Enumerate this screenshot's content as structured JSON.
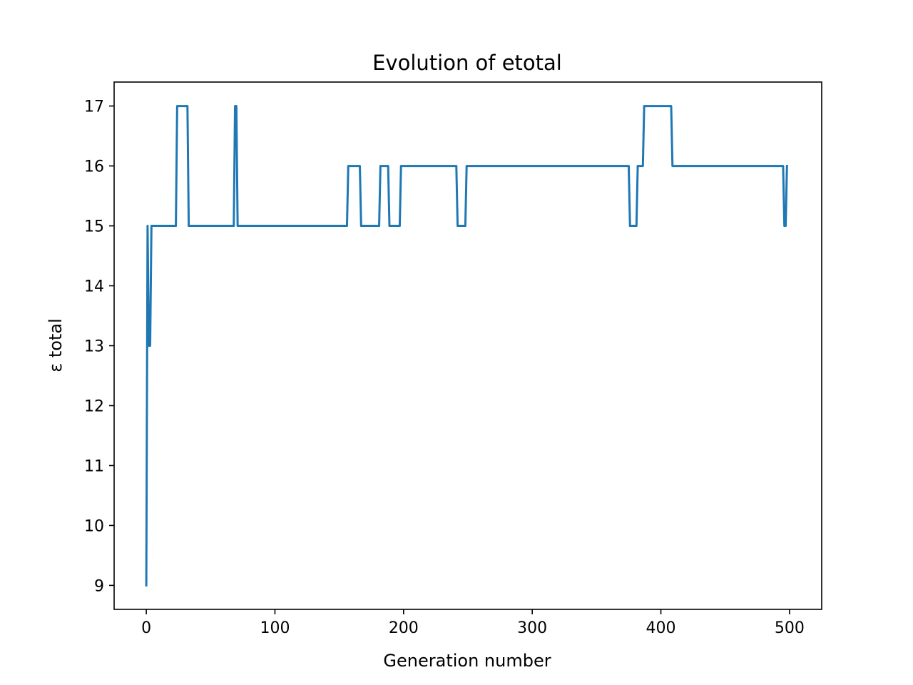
{
  "chart_data": {
    "type": "line",
    "title": "Evolution of etotal",
    "xlabel": "Generation number",
    "ylabel": "ε total",
    "xlim": [
      -25,
      525
    ],
    "ylim": [
      8.6,
      17.4
    ],
    "xticks": [
      0,
      100,
      200,
      300,
      400,
      500
    ],
    "yticks": [
      9,
      10,
      11,
      12,
      13,
      14,
      15,
      16,
      17
    ],
    "xtick_labels": [
      "0",
      "100",
      "200",
      "300",
      "400",
      "500"
    ],
    "ytick_labels": [
      "9",
      "10",
      "11",
      "12",
      "13",
      "14",
      "15",
      "16",
      "17"
    ],
    "grid": false,
    "series": [
      {
        "color": "#1f77b4",
        "points": [
          [
            0,
            9
          ],
          [
            1,
            15
          ],
          [
            2,
            13
          ],
          [
            3,
            13
          ],
          [
            4,
            15
          ],
          [
            23,
            15
          ],
          [
            24,
            17
          ],
          [
            32,
            17
          ],
          [
            33,
            15
          ],
          [
            68,
            15
          ],
          [
            69,
            17
          ],
          [
            70,
            17
          ],
          [
            71,
            15
          ],
          [
            156,
            15
          ],
          [
            157,
            16
          ],
          [
            166,
            16
          ],
          [
            167,
            15
          ],
          [
            181,
            15
          ],
          [
            182,
            16
          ],
          [
            188,
            16
          ],
          [
            189,
            15
          ],
          [
            197,
            15
          ],
          [
            198,
            16
          ],
          [
            241,
            16
          ],
          [
            242,
            15
          ],
          [
            248,
            15
          ],
          [
            249,
            16
          ],
          [
            375,
            16
          ],
          [
            376,
            15
          ],
          [
            381,
            15
          ],
          [
            382,
            16
          ],
          [
            386,
            16
          ],
          [
            387,
            17
          ],
          [
            408,
            17
          ],
          [
            409,
            16
          ],
          [
            495,
            16
          ],
          [
            496,
            15
          ],
          [
            497,
            15
          ],
          [
            498,
            16
          ]
        ]
      }
    ]
  }
}
